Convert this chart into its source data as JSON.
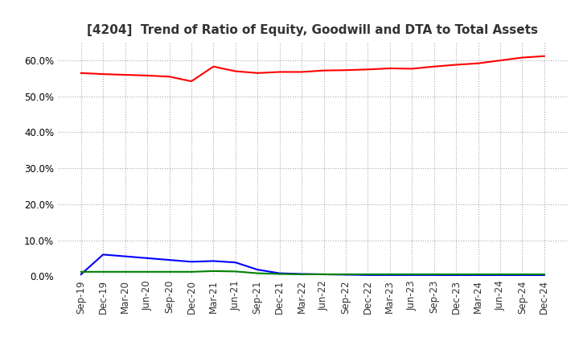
{
  "title": "[4204]  Trend of Ratio of Equity, Goodwill and DTA to Total Assets",
  "x_labels": [
    "Sep-19",
    "Dec-19",
    "Mar-20",
    "Jun-20",
    "Sep-20",
    "Dec-20",
    "Mar-21",
    "Jun-21",
    "Sep-21",
    "Dec-21",
    "Mar-22",
    "Jun-22",
    "Sep-22",
    "Dec-22",
    "Mar-23",
    "Jun-23",
    "Sep-23",
    "Dec-23",
    "Mar-24",
    "Jun-24",
    "Sep-24",
    "Dec-24"
  ],
  "equity": [
    0.565,
    0.562,
    0.56,
    0.558,
    0.555,
    0.542,
    0.583,
    0.57,
    0.565,
    0.568,
    0.568,
    0.572,
    0.573,
    0.575,
    0.578,
    0.577,
    0.583,
    0.588,
    0.592,
    0.6,
    0.608,
    0.612
  ],
  "goodwill": [
    0.005,
    0.06,
    0.055,
    0.05,
    0.045,
    0.04,
    0.042,
    0.038,
    0.018,
    0.008,
    0.006,
    0.005,
    0.004,
    0.003,
    0.003,
    0.003,
    0.003,
    0.002,
    0.002,
    0.002,
    0.002,
    0.002
  ],
  "dta": [
    0.012,
    0.012,
    0.012,
    0.012,
    0.012,
    0.012,
    0.014,
    0.013,
    0.008,
    0.006,
    0.005,
    0.005,
    0.005,
    0.005,
    0.005,
    0.005,
    0.005,
    0.005,
    0.005,
    0.005,
    0.005,
    0.005
  ],
  "equity_color": "#ff0000",
  "goodwill_color": "#0000ff",
  "dta_color": "#008000",
  "ylim": [
    0.0,
    0.65
  ],
  "yticks": [
    0.0,
    0.1,
    0.2,
    0.3,
    0.4,
    0.5,
    0.6
  ],
  "background_color": "#ffffff",
  "grid_color": "#aaaaaa",
  "title_fontsize": 11,
  "tick_fontsize": 8.5,
  "legend_fontsize": 9
}
